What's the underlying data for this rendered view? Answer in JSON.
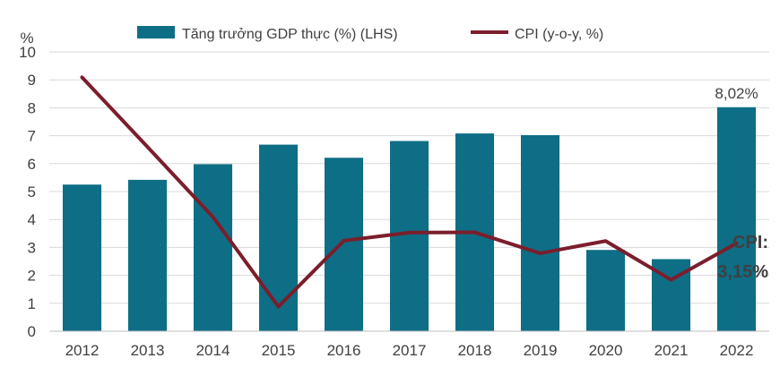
{
  "chart_data": {
    "type": "bar",
    "unit_label": "%",
    "categories": [
      "2012",
      "2013",
      "2014",
      "2015",
      "2016",
      "2017",
      "2018",
      "2019",
      "2020",
      "2021",
      "2022"
    ],
    "series": [
      {
        "name": "Tăng trưởng GDP thực (%) (LHS)",
        "kind": "bar",
        "color": "#0E6E86",
        "values": [
          5.25,
          5.42,
          5.98,
          6.68,
          6.21,
          6.81,
          7.08,
          7.02,
          2.91,
          2.58,
          8.02
        ]
      },
      {
        "name": "CPI (y-o-y, %)",
        "kind": "line",
        "color": "#7B1E2B",
        "values": [
          9.09,
          6.6,
          4.09,
          0.88,
          3.24,
          3.53,
          3.54,
          2.79,
          3.23,
          1.84,
          3.15
        ]
      }
    ],
    "ylim": [
      0,
      10
    ],
    "yticks": [
      "0",
      "1",
      "2",
      "3",
      "4",
      "5",
      "6",
      "7",
      "8",
      "9",
      "10"
    ],
    "grid": true,
    "legend_position": "top",
    "annotations": {
      "last_bar_label": "8,02%",
      "cpi_label_line1": "CPI:",
      "cpi_label_line2": "3,15%"
    }
  }
}
